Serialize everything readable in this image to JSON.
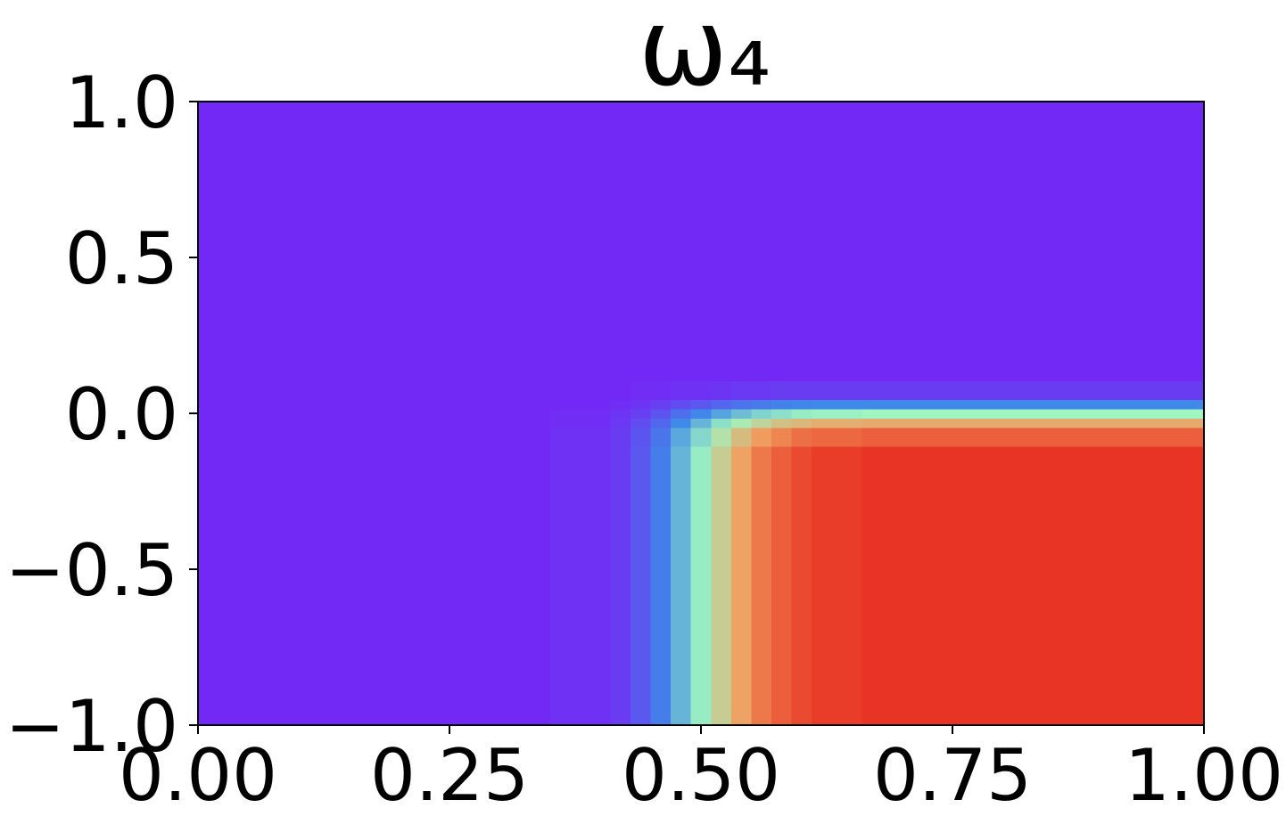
{
  "chart_data": {
    "type": "heatmap",
    "title": "ω₄",
    "x": [
      0.1,
      0.3,
      0.4,
      0.42,
      0.44,
      0.46,
      0.48,
      0.5,
      0.52,
      0.54,
      0.56,
      0.58,
      0.6,
      0.62,
      0.7,
      0.9
    ],
    "y": [
      -0.8,
      -0.4,
      -0.15,
      -0.06,
      -0.03,
      0,
      0.03,
      0.06,
      0.15,
      0.4,
      0.8
    ],
    "z": [
      [
        0,
        0,
        0.02,
        0.05,
        0.12,
        0.22,
        0.35,
        0.48,
        0.62,
        0.74,
        0.84,
        0.9,
        0.95,
        0.98,
        1,
        1
      ],
      [
        0,
        0,
        0.02,
        0.05,
        0.12,
        0.22,
        0.35,
        0.48,
        0.62,
        0.74,
        0.84,
        0.9,
        0.95,
        0.98,
        1,
        1
      ],
      [
        0,
        0,
        0.02,
        0.05,
        0.12,
        0.22,
        0.35,
        0.48,
        0.62,
        0.74,
        0.84,
        0.9,
        0.95,
        0.98,
        1,
        1
      ],
      [
        0,
        0,
        0.02,
        0.05,
        0.11,
        0.2,
        0.32,
        0.43,
        0.56,
        0.67,
        0.76,
        0.81,
        0.86,
        0.88,
        0.9,
        0.9
      ],
      [
        0,
        0,
        0.01,
        0.04,
        0.09,
        0.16,
        0.25,
        0.35,
        0.45,
        0.53,
        0.6,
        0.65,
        0.68,
        0.71,
        0.72,
        0.72
      ],
      [
        0,
        0,
        0.01,
        0.03,
        0.06,
        0.11,
        0.18,
        0.24,
        0.31,
        0.37,
        0.42,
        0.45,
        0.48,
        0.49,
        0.5,
        0.5
      ],
      [
        0,
        0,
        0,
        0.01,
        0.03,
        0.06,
        0.09,
        0.12,
        0.16,
        0.19,
        0.21,
        0.23,
        0.24,
        0.25,
        0.25,
        0.25
      ],
      [
        0,
        0,
        0,
        0,
        0.01,
        0.01,
        0.02,
        0.02,
        0.03,
        0.04,
        0.04,
        0.05,
        0.05,
        0.05,
        0.05,
        0.05
      ],
      [
        0,
        0,
        0,
        0,
        0,
        0,
        0,
        0,
        0,
        0,
        0,
        0,
        0,
        0,
        0,
        0
      ],
      [
        0,
        0,
        0,
        0,
        0,
        0,
        0,
        0,
        0,
        0,
        0,
        0,
        0,
        0,
        0,
        0
      ],
      [
        0,
        0,
        0,
        0,
        0,
        0,
        0,
        0,
        0,
        0,
        0,
        0,
        0,
        0,
        0,
        0
      ]
    ],
    "clim": [
      0,
      1
    ],
    "colormap": [
      "#7329f5",
      "#3f8ae8",
      "#a0f5c0",
      "#f0a060",
      "#e83424"
    ],
    "xlim": [
      0,
      1
    ],
    "ylim": [
      -1,
      1
    ],
    "xticks": [
      {
        "value": 0,
        "label": "0.00"
      },
      {
        "value": 0.25,
        "label": "0.25"
      },
      {
        "value": 0.5,
        "label": "0.50"
      },
      {
        "value": 0.75,
        "label": "0.75"
      },
      {
        "value": 1,
        "label": "1.00"
      }
    ],
    "yticks": [
      {
        "value": -1,
        "label": "−1.0"
      },
      {
        "value": -0.5,
        "label": "−0.5"
      },
      {
        "value": 0,
        "label": "0.0"
      },
      {
        "value": 0.5,
        "label": "0.5"
      },
      {
        "value": 1,
        "label": "1.0"
      }
    ]
  }
}
